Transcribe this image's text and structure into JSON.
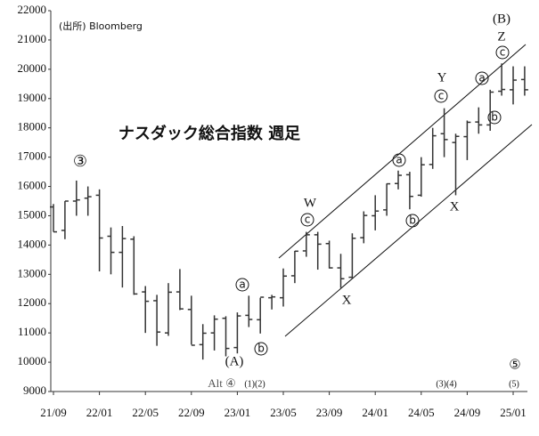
{
  "chart_data": {
    "type": "ohlc",
    "title": "ナスダック総合指数 週足",
    "source": "(出所) Bloomberg",
    "categories": [
      "21/09",
      null,
      null,
      null,
      "22/01",
      null,
      null,
      null,
      "22/05",
      null,
      null,
      null,
      "22/09",
      null,
      null,
      null,
      "23/01",
      null,
      null,
      null,
      "23/05",
      null,
      null,
      null,
      "23/09",
      null,
      null,
      null,
      "24/01",
      null,
      null,
      null,
      "24/05",
      null,
      null,
      null,
      "24/09",
      null,
      null,
      null,
      "25/01",
      null
    ],
    "open": [
      15300,
      14500,
      15500,
      15600,
      15700,
      14300,
      13750,
      14200,
      12400,
      12100,
      11000,
      12400,
      11800,
      10600,
      11000,
      11500,
      10500,
      11600,
      11450,
      12200,
      12200,
      12950,
      13800,
      14350,
      14050,
      13220,
      12900,
      14250,
      15000,
      15200,
      16100,
      16400,
      15700,
      16750,
      17800,
      17500,
      17700,
      18200,
      18100,
      19250,
      19300,
      19650
    ],
    "high": [
      15400,
      15500,
      16200,
      16000,
      15900,
      14600,
      14650,
      14300,
      12600,
      12300,
      12700,
      13180,
      12270,
      11300,
      11600,
      11570,
      11700,
      12270,
      12200,
      12300,
      13200,
      13800,
      14450,
      14450,
      14150,
      13700,
      14400,
      15150,
      15700,
      16100,
      16540,
      16500,
      17000,
      18000,
      18670,
      17800,
      18250,
      18700,
      19300,
      20200,
      20100,
      20100
    ],
    "low": [
      14450,
      14200,
      15000,
      15000,
      13100,
      13000,
      12550,
      12300,
      11000,
      10560,
      10900,
      11780,
      10600,
      10090,
      10400,
      10200,
      10300,
      11200,
      10980,
      11800,
      11900,
      12700,
      13600,
      13160,
      13200,
      12540,
      12850,
      14060,
      14500,
      15000,
      15900,
      15220,
      15650,
      16600,
      17000,
      15700,
      16900,
      17800,
      17900,
      19100,
      18800,
      19100
    ],
    "close": [
      14450,
      15500,
      15540,
      15650,
      14240,
      13750,
      14220,
      12330,
      12080,
      11030,
      12390,
      11820,
      10580,
      10990,
      11470,
      10470,
      11580,
      11460,
      12220,
      12230,
      12940,
      13790,
      14350,
      14030,
      13220,
      12850,
      14230,
      15010,
      15160,
      16090,
      16380,
      15660,
      16740,
      17730,
      17600,
      17710,
      18190,
      18100,
      19220,
      19310,
      19630,
      19300
    ],
    "color": "#333333",
    "ylim": [
      9000,
      22000
    ],
    "yticks": [
      9000,
      10000,
      11000,
      12000,
      13000,
      14000,
      15000,
      16000,
      17000,
      18000,
      19000,
      20000,
      21000,
      22000
    ],
    "annotations": [
      "③",
      "W",
      "X",
      "Y",
      "Z",
      "X",
      "(B)",
      "(A)",
      "Alt ④",
      "(1)(2)",
      "(3)(4)",
      "⑤",
      "(5)",
      "a",
      "b",
      "c",
      "a",
      "b",
      "c",
      "a",
      "b",
      "c"
    ]
  }
}
